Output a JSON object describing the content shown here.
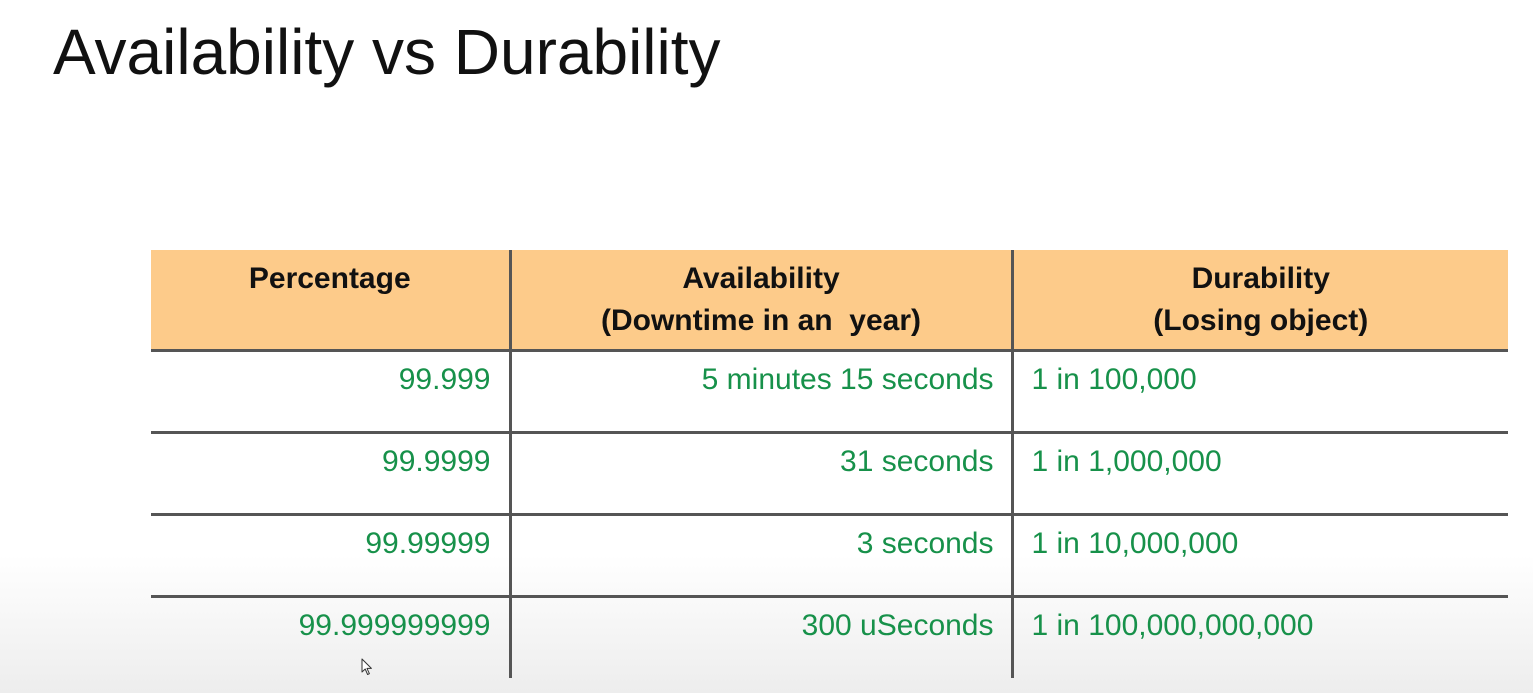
{
  "slide": {
    "title": "Availability vs Durability"
  },
  "table": {
    "headers": [
      {
        "line1": "Percentage",
        "line2": ""
      },
      {
        "line1": "Availability",
        "line2": "(Downtime in an  year)"
      },
      {
        "line1": "Durability",
        "line2": "(Losing object)"
      }
    ],
    "rows": [
      {
        "percentage": "99.999",
        "availability": "5 minutes 15 seconds",
        "durability": "1 in 100,000"
      },
      {
        "percentage": "99.9999",
        "availability": "31 seconds",
        "durability": "1 in 1,000,000"
      },
      {
        "percentage": "99.99999",
        "availability": "3 seconds",
        "durability": "1 in 10,000,000"
      },
      {
        "percentage": "99.999999999",
        "availability": "300 uSeconds",
        "durability": "1 in 100,000,000,000"
      }
    ]
  },
  "colors": {
    "header_bg": "#fdcb8a",
    "value_text": "#17914a",
    "grid_line": "#555555"
  },
  "icons": {
    "cursor": "mouse-pointer-icon"
  }
}
